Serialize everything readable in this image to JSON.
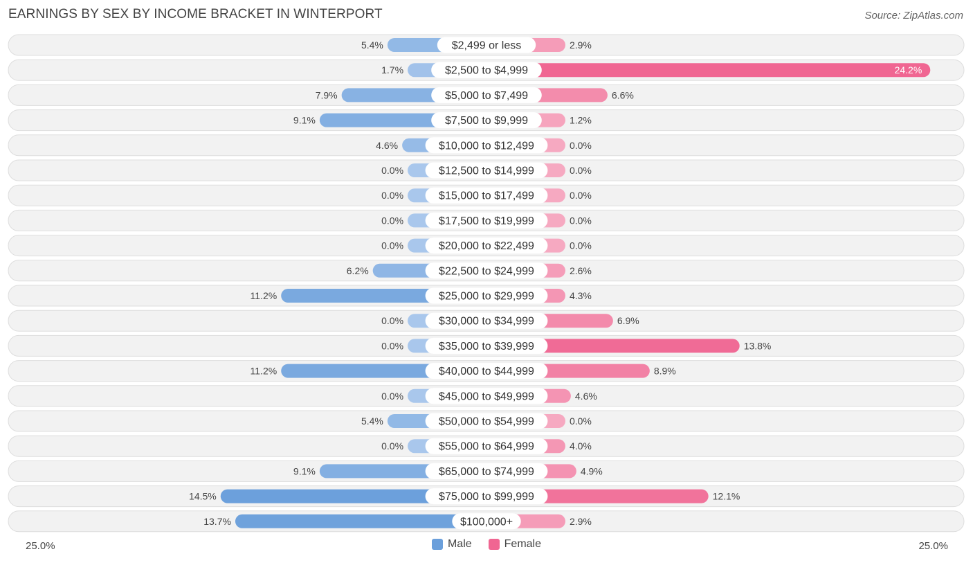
{
  "header": {
    "title": "EARNINGS BY SEX BY INCOME BRACKET IN WINTERPORT",
    "source": "Source: ZipAtlas.com"
  },
  "legend": {
    "male": "Male",
    "female": "Female"
  },
  "axis": {
    "left_label": "25.0%",
    "right_label": "25.0%"
  },
  "colors": {
    "male_strong": "#6a9fdb",
    "male_light": "#a9c7ec",
    "female_strong": "#f06692",
    "female_light": "#f6a9c1",
    "row_bg": "#f2f2f2",
    "row_border": "#dddddd"
  },
  "chart_data": {
    "type": "bar",
    "orientation": "diverging-horizontal",
    "title": "EARNINGS BY SEX BY INCOME BRACKET IN WINTERPORT",
    "xlim": [
      -25,
      25
    ],
    "unit": "%",
    "categories": [
      "$2,499 or less",
      "$2,500 to $4,999",
      "$5,000 to $7,499",
      "$7,500 to $9,999",
      "$10,000 to $12,499",
      "$12,500 to $14,999",
      "$15,000 to $17,499",
      "$17,500 to $19,999",
      "$20,000 to $22,499",
      "$22,500 to $24,999",
      "$25,000 to $29,999",
      "$30,000 to $34,999",
      "$35,000 to $39,999",
      "$40,000 to $44,999",
      "$45,000 to $49,999",
      "$50,000 to $54,999",
      "$55,000 to $64,999",
      "$65,000 to $74,999",
      "$75,000 to $99,999",
      "$100,000+"
    ],
    "series": [
      {
        "name": "Male",
        "values": [
          5.4,
          1.7,
          7.9,
          9.1,
          4.6,
          0.0,
          0.0,
          0.0,
          0.0,
          6.2,
          11.2,
          0.0,
          0.0,
          11.2,
          0.0,
          5.4,
          0.0,
          9.1,
          14.5,
          13.7
        ],
        "labels": [
          "5.4%",
          "1.7%",
          "7.9%",
          "9.1%",
          "4.6%",
          "0.0%",
          "0.0%",
          "0.0%",
          "0.0%",
          "6.2%",
          "11.2%",
          "0.0%",
          "0.0%",
          "11.2%",
          "0.0%",
          "5.4%",
          "0.0%",
          "9.1%",
          "14.5%",
          "13.7%"
        ]
      },
      {
        "name": "Female",
        "values": [
          2.9,
          24.2,
          6.6,
          1.2,
          0.0,
          0.0,
          0.0,
          0.0,
          0.0,
          2.6,
          4.3,
          6.9,
          13.8,
          8.9,
          4.6,
          0.0,
          4.0,
          4.9,
          12.1,
          2.9
        ],
        "labels": [
          "2.9%",
          "24.2%",
          "6.6%",
          "1.2%",
          "0.0%",
          "0.0%",
          "0.0%",
          "0.0%",
          "0.0%",
          "2.6%",
          "4.3%",
          "6.9%",
          "13.8%",
          "8.9%",
          "4.6%",
          "0.0%",
          "4.0%",
          "4.9%",
          "12.1%",
          "2.9%"
        ]
      }
    ],
    "legend_position": "bottom-center"
  }
}
